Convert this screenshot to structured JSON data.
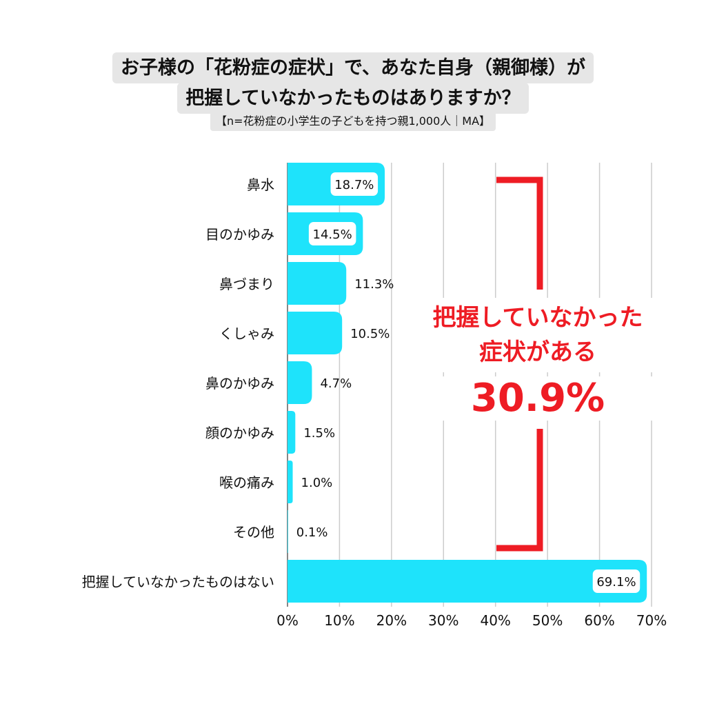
{
  "header": {
    "title_line1": "お子様の「花粉症の症状」で、あなた自身（親御様）が",
    "title_line2": "把握していなかったものはありますか？",
    "subtitle": "【n=花粉症の小学生の子どもを持つ親1,000人｜MA】"
  },
  "callout": {
    "line1": "把握していなかった",
    "line2": "症状がある",
    "value": "30.9%",
    "color": "#ee1c24"
  },
  "chart_data": {
    "type": "bar",
    "orientation": "horizontal",
    "categories": [
      "鼻水",
      "目のかゆみ",
      "鼻づまり",
      "くしゃみ",
      "鼻のかゆみ",
      "顔のかゆみ",
      "喉の痛み",
      "その他",
      "把握していなかったものはない"
    ],
    "values": [
      18.7,
      14.5,
      11.3,
      10.5,
      4.7,
      1.5,
      1.0,
      0.1,
      69.1
    ],
    "value_labels": [
      "18.7%",
      "14.5%",
      "11.3%",
      "10.5%",
      "4.7%",
      "1.5%",
      "1.0%",
      "0.1%",
      "69.1%"
    ],
    "xlim": [
      0,
      70
    ],
    "x_ticks": [
      "0%",
      "10%",
      "20%",
      "30%",
      "40%",
      "50%",
      "60%",
      "70%"
    ],
    "grid": true,
    "bar_color": "#1ee3fb",
    "grid_color": "#cccccc"
  }
}
